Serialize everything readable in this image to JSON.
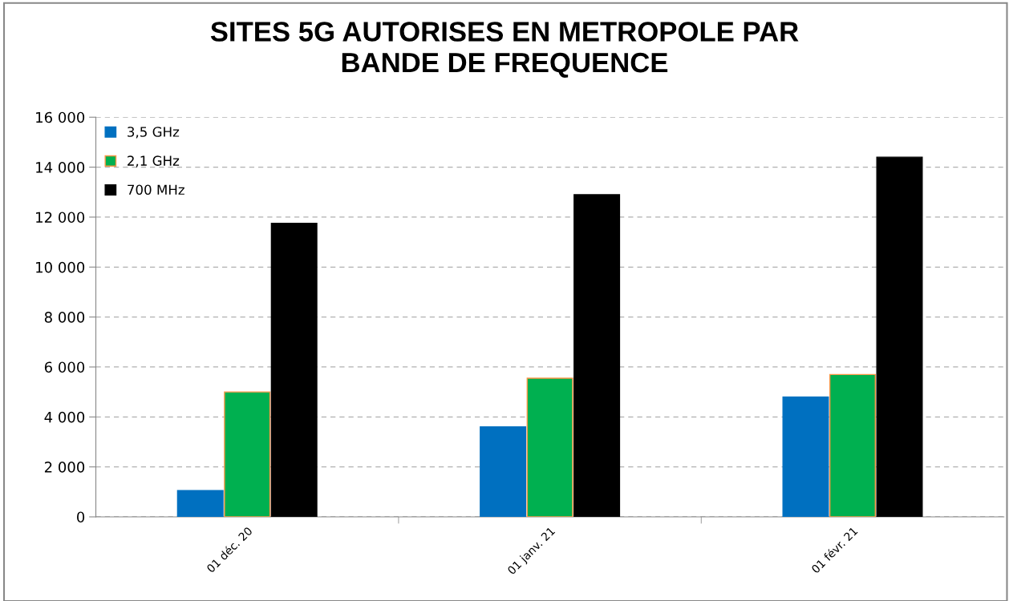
{
  "chart_data": {
    "type": "bar",
    "title": "SITES 5G AUTORISES EN METROPOLE PAR\nBANDE DE FREQUENCE",
    "categories": [
      "01 déc. 20",
      "01 janv. 21",
      "01 févr. 21"
    ],
    "series": [
      {
        "name": "3,5 GHz",
        "color": "#0070c0",
        "values": [
          1050,
          3600,
          4800
        ]
      },
      {
        "name": "2,1 GHz",
        "color": "#00b050",
        "values": [
          5000,
          5550,
          5700
        ]
      },
      {
        "name": "700 MHz",
        "color": "#000000",
        "values": [
          11750,
          12900,
          14400
        ]
      }
    ],
    "ylim": [
      0,
      16000
    ],
    "yticks": [
      {
        "value": 0,
        "label": "0"
      },
      {
        "value": 2000,
        "label": "2 000"
      },
      {
        "value": 4000,
        "label": "4 000"
      },
      {
        "value": 6000,
        "label": "6 000"
      },
      {
        "value": 8000,
        "label": "8 000"
      },
      {
        "value": 10000,
        "label": "10 000"
      },
      {
        "value": 12000,
        "label": "12 000"
      },
      {
        "value": 14000,
        "label": "14 000"
      },
      {
        "value": 16000,
        "label": "16 000"
      }
    ],
    "grid": "y",
    "legend": "top left"
  }
}
